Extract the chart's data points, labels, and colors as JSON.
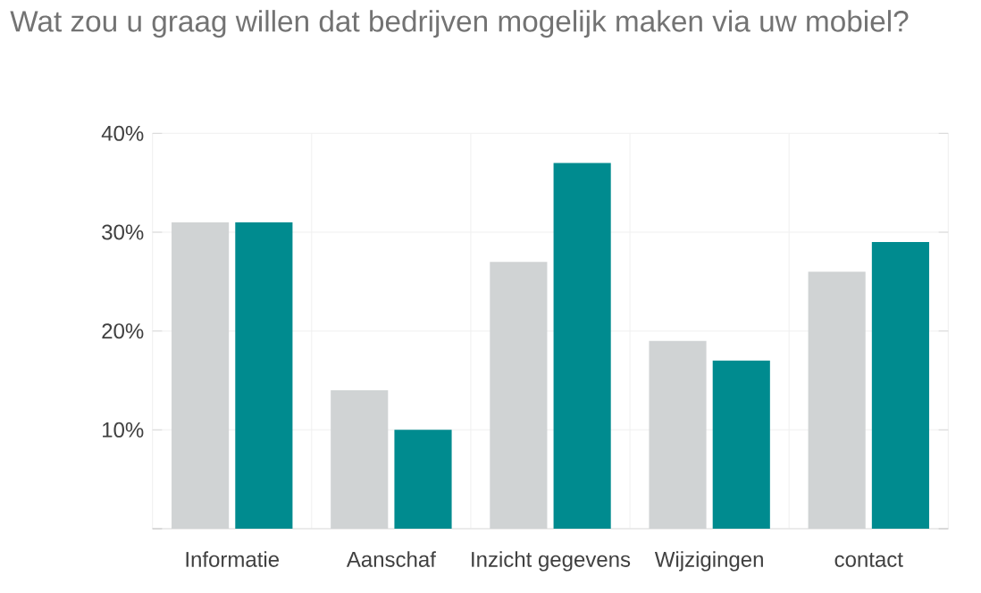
{
  "chart_data": {
    "type": "bar",
    "title": "Wat zou u graag willen dat bedrijven mogelijk maken via uw mobiel?",
    "categories": [
      "Informatie",
      "Aanschaf",
      "Inzicht gegevens",
      "Wijzigingen",
      "contact"
    ],
    "series": [
      {
        "color": "#d0d3d4",
        "values": [
          31,
          14,
          27,
          19,
          26
        ]
      },
      {
        "color": "#008b8f",
        "values": [
          31,
          10,
          37,
          17,
          29
        ]
      }
    ],
    "ylim": [
      0,
      40
    ],
    "yticks": [
      {
        "value": 0,
        "label": null
      },
      {
        "value": 10,
        "label": "10%"
      },
      {
        "value": 20,
        "label": "20%"
      },
      {
        "value": 30,
        "label": "30%"
      },
      {
        "value": 40,
        "label": "40%"
      }
    ],
    "grid": true
  }
}
